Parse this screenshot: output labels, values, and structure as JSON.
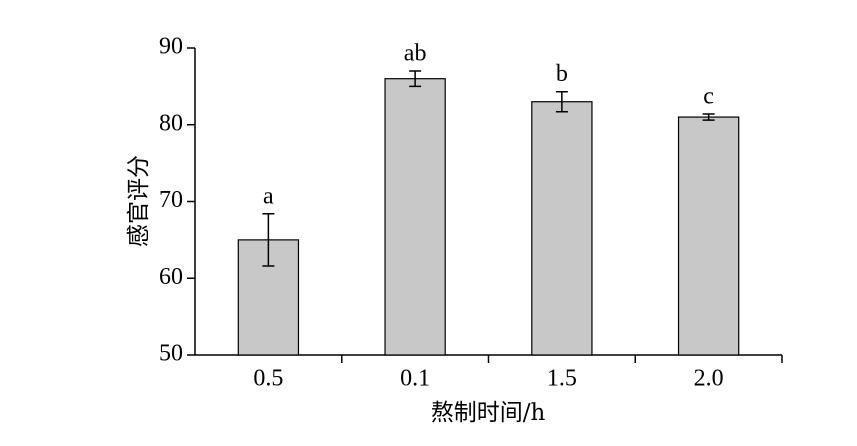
{
  "chart_data": {
    "type": "bar",
    "x_label": "熬制时间/h",
    "y_label": "感官评分",
    "categories": [
      "0.5",
      "0.1",
      "1.5",
      "2.0"
    ],
    "values": [
      65,
      86,
      83,
      81
    ],
    "errors": [
      3.4,
      1.0,
      1.3,
      0.4
    ],
    "annotations": [
      "a",
      "ab",
      "b",
      "c"
    ],
    "color": "#c8c8c8",
    "ylim": [
      50,
      90
    ],
    "yticks": [
      50,
      60,
      70,
      80,
      90
    ],
    "grid": false
  }
}
